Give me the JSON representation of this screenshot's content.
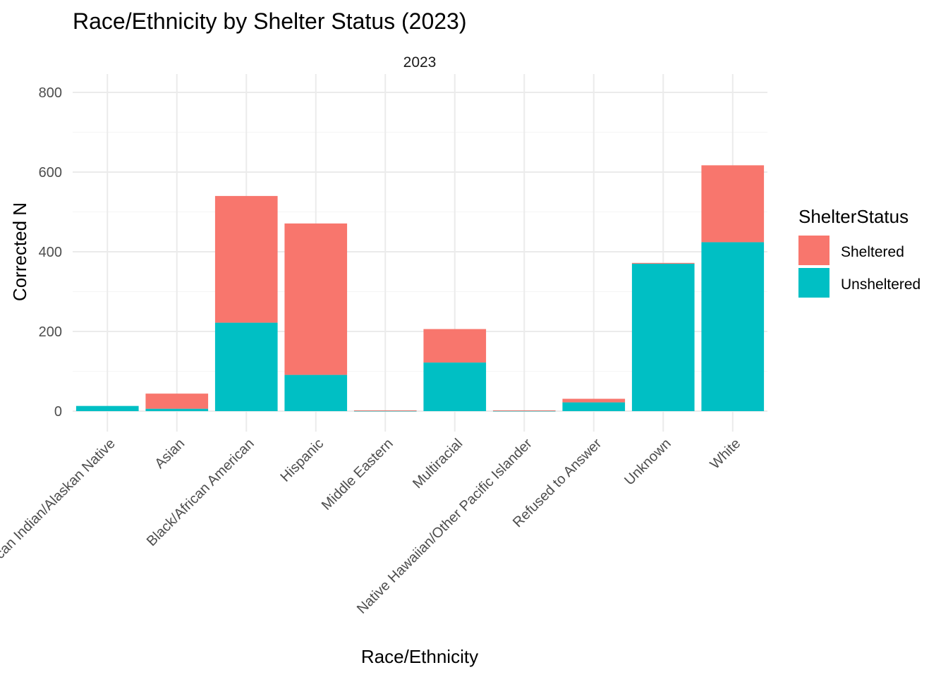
{
  "chart_data": {
    "type": "bar",
    "stacked": true,
    "title": "Race/Ethnicity by Shelter Status (2023)",
    "facet_label": "2023",
    "xlabel": "Race/Ethnicity",
    "ylabel": "Corrected N",
    "ylim": [
      0,
      840
    ],
    "yticks": [
      0,
      200,
      400,
      600,
      800
    ],
    "grid": true,
    "legend": {
      "title": "ShelterStatus",
      "position": "right"
    },
    "categories": [
      "American Indian/Alaskan Native",
      "Asian",
      "Black/African American",
      "Hispanic",
      "Middle Eastern",
      "Multiracial",
      "Native Hawaiian/Other Pacific Islander",
      "Refused to Answer",
      "Unknown",
      "White"
    ],
    "series": [
      {
        "name": "Unsheltered",
        "color": "#00BFC4",
        "values": [
          13,
          6,
          222,
          91,
          1,
          122,
          1,
          22,
          370,
          424
        ]
      },
      {
        "name": "Sheltered",
        "color": "#F8766D",
        "values": [
          0,
          38,
          318,
          380,
          1,
          84,
          1,
          9,
          2,
          193
        ]
      }
    ],
    "legend_order": [
      "Sheltered",
      "Unsheltered"
    ]
  }
}
